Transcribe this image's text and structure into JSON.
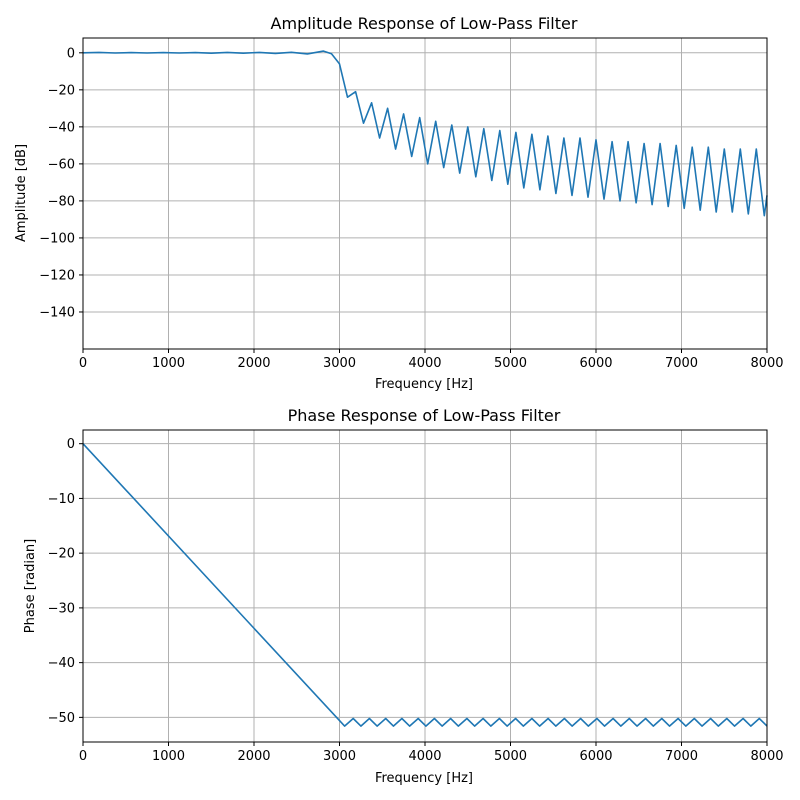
{
  "chart_data": [
    {
      "type": "line",
      "title": "Amplitude Response of Low-Pass Filter",
      "xlabel": "Frequency [Hz]",
      "ylabel": "Amplitude [dB]",
      "xlim": [
        0,
        8000
      ],
      "ylim": [
        -160,
        8
      ],
      "xticks": [
        0,
        1000,
        2000,
        3000,
        4000,
        5000,
        6000,
        7000,
        8000
      ],
      "xtick_labels": [
        "0",
        "1000",
        "2000",
        "3000",
        "4000",
        "5000",
        "6000",
        "7000",
        "8000"
      ],
      "yticks": [
        0,
        -20,
        -40,
        -60,
        -80,
        -100,
        -120,
        -140
      ],
      "ytick_labels": [
        "0",
        "−20",
        "−40",
        "−60",
        "−80",
        "−100",
        "−120",
        "−140"
      ],
      "grid": true,
      "color": "#1f77b4",
      "series": [
        {
          "x": [
            0,
            188,
            375,
            563,
            750,
            938,
            1125,
            1313,
            1500,
            1688,
            1875,
            2063,
            2250,
            2438,
            2625,
            2813,
            2906,
            3000,
            3094,
            3188,
            3281,
            3375,
            3469,
            3563,
            3656,
            3750,
            3844,
            3938,
            4031,
            4125,
            4219,
            4313,
            4406,
            4500,
            4594,
            4688,
            4781,
            4875,
            4969,
            5063,
            5156,
            5250,
            5344,
            5438,
            5531,
            5625,
            5719,
            5813,
            5906,
            6000,
            6094,
            6188,
            6281,
            6375,
            6469,
            6563,
            6656,
            6750,
            6844,
            6938,
            7031,
            7125,
            7219,
            7313,
            7406,
            7500,
            7594,
            7688,
            7781,
            7875,
            7969,
            8000
          ],
          "y": [
            0,
            0.2,
            -0.1,
            0.1,
            -0.1,
            0.1,
            -0.1,
            0.1,
            -0.2,
            0.2,
            -0.2,
            0.2,
            -0.3,
            0.3,
            -0.6,
            0.9,
            -0.5,
            -6,
            -24,
            -21,
            -38,
            -27,
            -46,
            -30,
            -52,
            -33,
            -56,
            -35,
            -60,
            -37,
            -62,
            -39,
            -65,
            -40,
            -67,
            -41,
            -69,
            -42,
            -71,
            -43,
            -73,
            -44,
            -74,
            -45,
            -76,
            -46,
            -77,
            -46,
            -78,
            -47,
            -79,
            -48,
            -80,
            -48,
            -81,
            -49,
            -82,
            -49,
            -83,
            -50,
            -84,
            -51,
            -85,
            -51,
            -86,
            -52,
            -86,
            -52,
            -87,
            -52,
            -88,
            -77
          ]
        }
      ]
    },
    {
      "type": "line",
      "title": "Phase Response of Low-Pass Filter",
      "xlabel": "Frequency [Hz]",
      "ylabel": "Phase [radian]",
      "xlim": [
        0,
        8000
      ],
      "ylim": [
        -54.5,
        2.5
      ],
      "xticks": [
        0,
        1000,
        2000,
        3000,
        4000,
        5000,
        6000,
        7000,
        8000
      ],
      "xtick_labels": [
        "0",
        "1000",
        "2000",
        "3000",
        "4000",
        "5000",
        "6000",
        "7000",
        "8000"
      ],
      "yticks": [
        0,
        -10,
        -20,
        -30,
        -40,
        -50
      ],
      "ytick_labels": [
        "0",
        "−10",
        "−20",
        "−30",
        "−40",
        "−50"
      ],
      "grid": true,
      "color": "#1f77b4",
      "series": [
        {
          "x": [
            0,
            3060,
            3160,
            3250,
            3350,
            3440,
            3540,
            3630,
            3730,
            3820,
            3920,
            4010,
            4110,
            4200,
            4300,
            4390,
            4490,
            4580,
            4680,
            4770,
            4870,
            4960,
            5060,
            5150,
            5250,
            5340,
            5440,
            5530,
            5630,
            5720,
            5820,
            5910,
            6010,
            6100,
            6200,
            6290,
            6390,
            6480,
            6580,
            6670,
            6770,
            6860,
            6960,
            7050,
            7150,
            7240,
            7340,
            7430,
            7530,
            7620,
            7720,
            7810,
            7910,
            8000
          ],
          "y": [
            0,
            -51.6,
            -50.2,
            -51.6,
            -50.2,
            -51.6,
            -50.2,
            -51.6,
            -50.2,
            -51.6,
            -50.2,
            -51.6,
            -50.2,
            -51.6,
            -50.2,
            -51.6,
            -50.2,
            -51.6,
            -50.2,
            -51.6,
            -50.2,
            -51.6,
            -50.2,
            -51.6,
            -50.2,
            -51.6,
            -50.2,
            -51.6,
            -50.2,
            -51.6,
            -50.2,
            -51.6,
            -50.2,
            -51.6,
            -50.2,
            -51.6,
            -50.2,
            -51.6,
            -50.2,
            -51.6,
            -50.2,
            -51.6,
            -50.2,
            -51.6,
            -50.2,
            -51.6,
            -50.2,
            -51.6,
            -50.2,
            -51.6,
            -50.2,
            -51.6,
            -50.2,
            -51.6
          ]
        }
      ]
    }
  ]
}
